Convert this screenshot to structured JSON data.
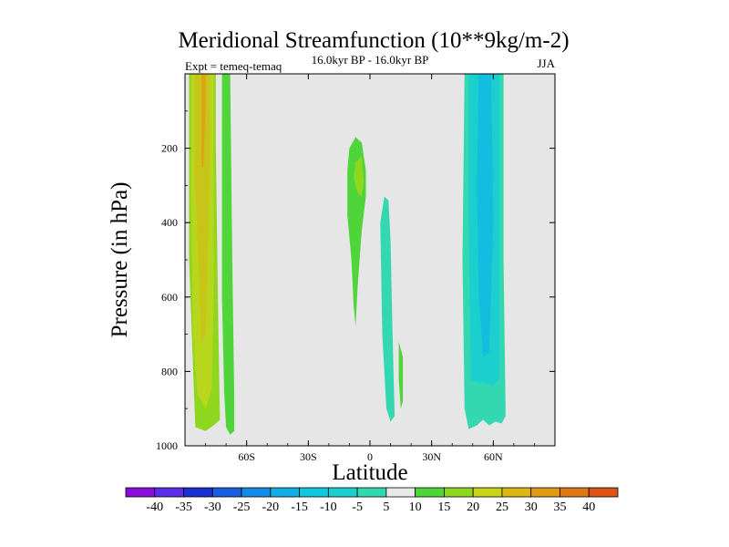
{
  "chart_data": {
    "type": "contour",
    "title": "Meridional Streamfunction (10**9kg/m-2)",
    "subtitle_left": "Expt = temeq-temaq",
    "subtitle_center": "16.0kyr BP - 16.0kyr BP",
    "subtitle_right": "JJA",
    "xlabel": "Latitude",
    "ylabel": "Pressure (in hPa)",
    "xlim": [
      -90,
      90
    ],
    "ylim": [
      1000,
      0
    ],
    "x_ticks": [
      {
        "value": -60,
        "label": "60S"
      },
      {
        "value": -30,
        "label": "30S"
      },
      {
        "value": 0,
        "label": "0"
      },
      {
        "value": 30,
        "label": "30N"
      },
      {
        "value": 60,
        "label": "60N"
      }
    ],
    "y_ticks": [
      {
        "value": 200,
        "label": "200"
      },
      {
        "value": 400,
        "label": "400"
      },
      {
        "value": 600,
        "label": "600"
      },
      {
        "value": 800,
        "label": "800"
      },
      {
        "value": 1000,
        "label": "1000"
      }
    ],
    "background_color": "#e6e6e6",
    "regions": [
      {
        "name": "sh-cell-outer",
        "level": 10,
        "points": [
          [
            -88,
            0
          ],
          [
            -75,
            0
          ],
          [
            -75,
            180
          ],
          [
            -74,
            600
          ],
          [
            -73,
            930
          ],
          [
            -76,
            945
          ],
          [
            -80,
            960
          ],
          [
            -85,
            950
          ],
          [
            -86,
            800
          ],
          [
            -88,
            500
          ]
        ]
      },
      {
        "name": "sh-cell-mid",
        "level": 15,
        "points": [
          [
            -87,
            0
          ],
          [
            -76,
            0
          ],
          [
            -76,
            250
          ],
          [
            -76,
            600
          ],
          [
            -77,
            850
          ],
          [
            -80,
            900
          ],
          [
            -84,
            860
          ],
          [
            -86,
            700
          ],
          [
            -87,
            400
          ]
        ]
      },
      {
        "name": "sh-cell-core",
        "level": 20,
        "points": [
          [
            -85,
            0
          ],
          [
            -78,
            0
          ],
          [
            -78,
            200
          ],
          [
            -79,
            500
          ],
          [
            -80,
            700
          ],
          [
            -82,
            720
          ],
          [
            -83,
            550
          ],
          [
            -85,
            300
          ]
        ]
      },
      {
        "name": "sh-cell-max",
        "level": 25,
        "points": [
          [
            -82,
            0
          ],
          [
            -80,
            0
          ],
          [
            -80,
            100
          ],
          [
            -81,
            250
          ],
          [
            -82,
            250
          ]
        ]
      },
      {
        "name": "sh-cell-strip",
        "level": 5,
        "points": [
          [
            -72,
            0
          ],
          [
            -68,
            0
          ],
          [
            -67,
            500
          ],
          [
            -66,
            870
          ],
          [
            -66,
            960
          ],
          [
            -68,
            970
          ],
          [
            -70,
            950
          ],
          [
            -71,
            850
          ],
          [
            -72,
            600
          ]
        ]
      },
      {
        "name": "eq-upper",
        "level": 5,
        "points": [
          [
            -10,
            200
          ],
          [
            -7,
            170
          ],
          [
            -4,
            185
          ],
          [
            -2,
            260
          ],
          [
            -2,
            330
          ],
          [
            -4,
            420
          ],
          [
            -6,
            570
          ],
          [
            -7,
            680
          ],
          [
            -8,
            620
          ],
          [
            -9,
            500
          ],
          [
            -11,
            380
          ],
          [
            -11,
            260
          ]
        ]
      },
      {
        "name": "eq-upper-core",
        "level": 10,
        "points": [
          [
            -7,
            240
          ],
          [
            -4,
            220
          ],
          [
            -3,
            290
          ],
          [
            -4,
            330
          ],
          [
            -6,
            320
          ],
          [
            -8,
            280
          ]
        ]
      },
      {
        "name": "eq-lower",
        "level": -5,
        "points": [
          [
            7,
            330
          ],
          [
            9,
            340
          ],
          [
            10,
            450
          ],
          [
            11,
            700
          ],
          [
            12,
            920
          ],
          [
            10,
            935
          ],
          [
            8,
            900
          ],
          [
            6,
            700
          ],
          [
            5,
            400
          ]
        ]
      },
      {
        "name": "eq-sliver",
        "level": 5,
        "points": [
          [
            14,
            720
          ],
          [
            16,
            760
          ],
          [
            16,
            880
          ],
          [
            15,
            900
          ],
          [
            14,
            820
          ]
        ]
      },
      {
        "name": "nh-cell-outer",
        "level": -5,
        "points": [
          [
            46,
            0
          ],
          [
            65,
            0
          ],
          [
            65,
            500
          ],
          [
            66,
            920
          ],
          [
            64,
            940
          ],
          [
            61,
            935
          ],
          [
            58,
            945
          ],
          [
            55,
            930
          ],
          [
            52,
            945
          ],
          [
            48,
            955
          ],
          [
            46,
            900
          ],
          [
            45,
            500
          ]
        ]
      },
      {
        "name": "nh-cell-mid",
        "level": -10,
        "points": [
          [
            48,
            0
          ],
          [
            63,
            0
          ],
          [
            63,
            400
          ],
          [
            63,
            820
          ],
          [
            60,
            840
          ],
          [
            56,
            830
          ],
          [
            52,
            830
          ],
          [
            49,
            820
          ],
          [
            48,
            400
          ]
        ]
      },
      {
        "name": "nh-cell-core",
        "level": -15,
        "points": [
          [
            53,
            0
          ],
          [
            59,
            0
          ],
          [
            60,
            400
          ],
          [
            58,
            750
          ],
          [
            55,
            760
          ],
          [
            53,
            600
          ],
          [
            52,
            300
          ]
        ]
      }
    ],
    "colorbar": {
      "labels": [
        "-40",
        "-35",
        "-30",
        "-25",
        "-20",
        "-15",
        "-10",
        "-5",
        "5",
        "10",
        "15",
        "20",
        "25",
        "30",
        "35",
        "40"
      ],
      "colors": [
        "#8a0ddc",
        "#5a2ee8",
        "#1a2fd0",
        "#1a5ee0",
        "#138be8",
        "#12aee4",
        "#0fc8dd",
        "#1ccfcf",
        "#33d8b0",
        "#e8e8e8",
        "#4fd43a",
        "#8fd61e",
        "#c9d318",
        "#dcb814",
        "#df9a14",
        "#de7714",
        "#dd5414"
      ],
      "value_colors": [
        {
          "level": 5,
          "color": "#4fd43a"
        },
        {
          "level": 10,
          "color": "#8fd61e"
        },
        {
          "level": 15,
          "color": "#b7d61c"
        },
        {
          "level": 20,
          "color": "#c9c418"
        },
        {
          "level": 25,
          "color": "#d9a516"
        },
        {
          "level": -5,
          "color": "#33d8b0"
        },
        {
          "level": -10,
          "color": "#1ccfcf"
        },
        {
          "level": -15,
          "color": "#12bde0"
        }
      ]
    }
  }
}
